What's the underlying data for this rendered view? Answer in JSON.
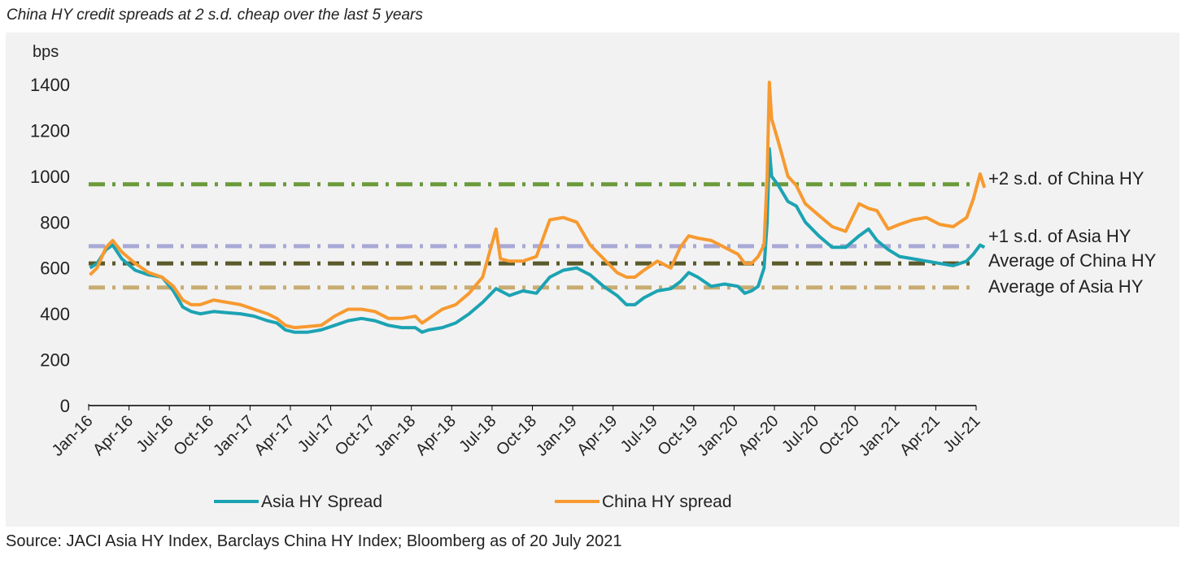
{
  "title": "China HY credit spreads at 2 s.d. cheap over the last 5 years",
  "source": "Source: JACI Asia HY Index, Barclays China HY Index; Bloomberg as of 20 July 2021",
  "chart_data": {
    "type": "line",
    "ylabel": "bps",
    "ylim": [
      0,
      1400
    ],
    "yticks": [
      0,
      200,
      400,
      600,
      800,
      1000,
      1200,
      1400
    ],
    "x_range": [
      "2016-01",
      "2021-07"
    ],
    "xticks": [
      "Jan-16",
      "Apr-16",
      "Jul-16",
      "Oct-16",
      "Jan-17",
      "Apr-17",
      "Jul-17",
      "Oct-17",
      "Jan-18",
      "Apr-18",
      "Jul-18",
      "Oct-18",
      "Jan-19",
      "Apr-19",
      "Jul-19",
      "Oct-19",
      "Jan-20",
      "Apr-20",
      "Jul-20",
      "Oct-20",
      "Jan-21",
      "Apr-21",
      "Jul-21"
    ],
    "grid": false,
    "legend_position": "bottom",
    "series": [
      {
        "name": "Asia HY Spread",
        "color": "#1ca3b3",
        "points": [
          [
            "2016-01-04",
            600
          ],
          [
            "2016-01-20",
            620
          ],
          [
            "2016-02-10",
            680
          ],
          [
            "2016-02-25",
            700
          ],
          [
            "2016-03-15",
            640
          ],
          [
            "2016-04-15",
            590
          ],
          [
            "2016-05-15",
            570
          ],
          [
            "2016-06-15",
            560
          ],
          [
            "2016-07-10",
            500
          ],
          [
            "2016-08-01",
            430
          ],
          [
            "2016-08-20",
            410
          ],
          [
            "2016-09-10",
            400
          ],
          [
            "2016-10-10",
            410
          ],
          [
            "2016-11-10",
            405
          ],
          [
            "2016-12-10",
            400
          ],
          [
            "2017-01-10",
            390
          ],
          [
            "2017-02-10",
            370
          ],
          [
            "2017-03-01",
            360
          ],
          [
            "2017-03-20",
            330
          ],
          [
            "2017-04-10",
            320
          ],
          [
            "2017-05-10",
            320
          ],
          [
            "2017-06-10",
            330
          ],
          [
            "2017-07-10",
            350
          ],
          [
            "2017-08-10",
            370
          ],
          [
            "2017-09-10",
            380
          ],
          [
            "2017-10-10",
            370
          ],
          [
            "2017-11-10",
            350
          ],
          [
            "2017-12-10",
            340
          ],
          [
            "2018-01-10",
            340
          ],
          [
            "2018-01-25",
            320
          ],
          [
            "2018-02-10",
            330
          ],
          [
            "2018-03-10",
            340
          ],
          [
            "2018-04-10",
            360
          ],
          [
            "2018-05-10",
            400
          ],
          [
            "2018-06-10",
            450
          ],
          [
            "2018-07-10",
            510
          ],
          [
            "2018-07-20",
            500
          ],
          [
            "2018-08-10",
            480
          ],
          [
            "2018-09-10",
            500
          ],
          [
            "2018-10-10",
            490
          ],
          [
            "2018-11-10",
            560
          ],
          [
            "2018-12-10",
            590
          ],
          [
            "2019-01-10",
            600
          ],
          [
            "2019-02-10",
            570
          ],
          [
            "2019-03-10",
            520
          ],
          [
            "2019-04-10",
            480
          ],
          [
            "2019-05-01",
            440
          ],
          [
            "2019-05-20",
            440
          ],
          [
            "2019-06-10",
            470
          ],
          [
            "2019-07-10",
            500
          ],
          [
            "2019-08-10",
            510
          ],
          [
            "2019-09-01",
            540
          ],
          [
            "2019-09-20",
            580
          ],
          [
            "2019-10-10",
            560
          ],
          [
            "2019-11-10",
            520
          ],
          [
            "2019-12-10",
            530
          ],
          [
            "2020-01-10",
            520
          ],
          [
            "2020-01-25",
            490
          ],
          [
            "2020-02-10",
            500
          ],
          [
            "2020-02-25",
            520
          ],
          [
            "2020-03-08",
            600
          ],
          [
            "2020-03-15",
            800
          ],
          [
            "2020-03-20",
            1120
          ],
          [
            "2020-03-25",
            1000
          ],
          [
            "2020-04-10",
            960
          ],
          [
            "2020-05-01",
            890
          ],
          [
            "2020-05-20",
            870
          ],
          [
            "2020-06-10",
            800
          ],
          [
            "2020-07-10",
            740
          ],
          [
            "2020-08-10",
            690
          ],
          [
            "2020-09-10",
            690
          ],
          [
            "2020-10-10",
            740
          ],
          [
            "2020-11-01",
            770
          ],
          [
            "2020-11-20",
            720
          ],
          [
            "2020-12-15",
            680
          ],
          [
            "2021-01-10",
            650
          ],
          [
            "2021-02-10",
            640
          ],
          [
            "2021-03-10",
            630
          ],
          [
            "2021-04-10",
            620
          ],
          [
            "2021-05-10",
            610
          ],
          [
            "2021-06-10",
            630
          ],
          [
            "2021-06-25",
            660
          ],
          [
            "2021-07-10",
            700
          ],
          [
            "2021-07-20",
            690
          ]
        ]
      },
      {
        "name": "China HY spread",
        "color": "#f79a30",
        "points": [
          [
            "2016-01-04",
            570
          ],
          [
            "2016-01-20",
            600
          ],
          [
            "2016-02-10",
            690
          ],
          [
            "2016-02-25",
            720
          ],
          [
            "2016-03-15",
            670
          ],
          [
            "2016-04-15",
            620
          ],
          [
            "2016-05-15",
            580
          ],
          [
            "2016-06-15",
            560
          ],
          [
            "2016-07-10",
            520
          ],
          [
            "2016-08-01",
            460
          ],
          [
            "2016-08-20",
            440
          ],
          [
            "2016-09-10",
            440
          ],
          [
            "2016-10-10",
            460
          ],
          [
            "2016-11-10",
            450
          ],
          [
            "2016-12-10",
            440
          ],
          [
            "2017-01-10",
            420
          ],
          [
            "2017-02-10",
            400
          ],
          [
            "2017-03-01",
            380
          ],
          [
            "2017-03-20",
            350
          ],
          [
            "2017-04-10",
            340
          ],
          [
            "2017-05-10",
            345
          ],
          [
            "2017-06-10",
            350
          ],
          [
            "2017-07-10",
            390
          ],
          [
            "2017-08-10",
            420
          ],
          [
            "2017-09-10",
            420
          ],
          [
            "2017-10-10",
            410
          ],
          [
            "2017-11-10",
            380
          ],
          [
            "2017-12-10",
            380
          ],
          [
            "2018-01-10",
            390
          ],
          [
            "2018-01-25",
            360
          ],
          [
            "2018-02-10",
            380
          ],
          [
            "2018-03-10",
            420
          ],
          [
            "2018-04-10",
            440
          ],
          [
            "2018-05-10",
            490
          ],
          [
            "2018-06-10",
            560
          ],
          [
            "2018-07-10",
            770
          ],
          [
            "2018-07-20",
            640
          ],
          [
            "2018-08-10",
            630
          ],
          [
            "2018-09-10",
            630
          ],
          [
            "2018-10-10",
            650
          ],
          [
            "2018-11-10",
            810
          ],
          [
            "2018-12-10",
            820
          ],
          [
            "2019-01-10",
            800
          ],
          [
            "2019-02-10",
            700
          ],
          [
            "2019-03-10",
            640
          ],
          [
            "2019-04-10",
            580
          ],
          [
            "2019-05-01",
            560
          ],
          [
            "2019-05-20",
            560
          ],
          [
            "2019-06-10",
            590
          ],
          [
            "2019-07-10",
            630
          ],
          [
            "2019-08-10",
            600
          ],
          [
            "2019-09-01",
            690
          ],
          [
            "2019-09-20",
            740
          ],
          [
            "2019-10-10",
            730
          ],
          [
            "2019-11-10",
            720
          ],
          [
            "2019-12-10",
            690
          ],
          [
            "2020-01-10",
            660
          ],
          [
            "2020-01-25",
            620
          ],
          [
            "2020-02-10",
            620
          ],
          [
            "2020-02-25",
            650
          ],
          [
            "2020-03-08",
            700
          ],
          [
            "2020-03-15",
            1000
          ],
          [
            "2020-03-20",
            1410
          ],
          [
            "2020-03-25",
            1250
          ],
          [
            "2020-04-10",
            1150
          ],
          [
            "2020-05-01",
            1000
          ],
          [
            "2020-05-20",
            960
          ],
          [
            "2020-06-10",
            880
          ],
          [
            "2020-07-10",
            830
          ],
          [
            "2020-08-10",
            780
          ],
          [
            "2020-09-10",
            760
          ],
          [
            "2020-10-10",
            880
          ],
          [
            "2020-11-01",
            860
          ],
          [
            "2020-11-20",
            850
          ],
          [
            "2020-12-15",
            770
          ],
          [
            "2021-01-10",
            790
          ],
          [
            "2021-02-10",
            810
          ],
          [
            "2021-03-10",
            820
          ],
          [
            "2021-04-10",
            790
          ],
          [
            "2021-05-10",
            780
          ],
          [
            "2021-06-10",
            820
          ],
          [
            "2021-06-25",
            900
          ],
          [
            "2021-07-10",
            1010
          ],
          [
            "2021-07-20",
            950
          ]
        ]
      }
    ],
    "reference_lines": [
      {
        "label": "+2 s.d. of China HY",
        "value": 965,
        "color": "#6b9a3a"
      },
      {
        "label": "+1 s.d. of Asia HY",
        "value": 695,
        "color": "#a9a9d6"
      },
      {
        "label": "Average of China HY",
        "value": 620,
        "color": "#5a5a2a"
      },
      {
        "label": "Average of Asia HY",
        "value": 515,
        "color": "#c8ac72"
      }
    ]
  }
}
